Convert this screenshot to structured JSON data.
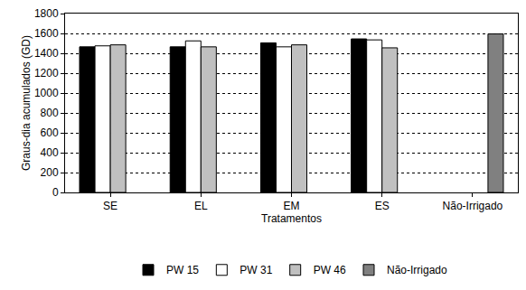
{
  "chart_data": {
    "type": "bar",
    "x_label": "Tratamentos",
    "y_label": "Graus-dia acumulados (GD)",
    "categories": [
      "SE",
      "EL",
      "EM",
      "ES",
      "Não-Irrigado"
    ],
    "series": [
      {
        "name": "PW 15",
        "color": "#000000",
        "values": [
          1465,
          1465,
          1505,
          1545,
          null
        ]
      },
      {
        "name": "PW 31",
        "color": "#ffffff",
        "values": [
          1475,
          1525,
          1465,
          1535,
          null
        ]
      },
      {
        "name": "PW 46",
        "color": "#c0c0c0",
        "values": [
          1485,
          1465,
          1485,
          1455,
          null
        ]
      },
      {
        "name": "Não-Irrigado",
        "color": "#808080",
        "values": [
          null,
          null,
          null,
          null,
          1595
        ]
      }
    ],
    "ylim": [
      0,
      1800
    ],
    "yticks": [
      0,
      200,
      400,
      600,
      800,
      1000,
      1200,
      1400,
      1600,
      1800
    ],
    "grid": true,
    "legend": "bottom"
  }
}
